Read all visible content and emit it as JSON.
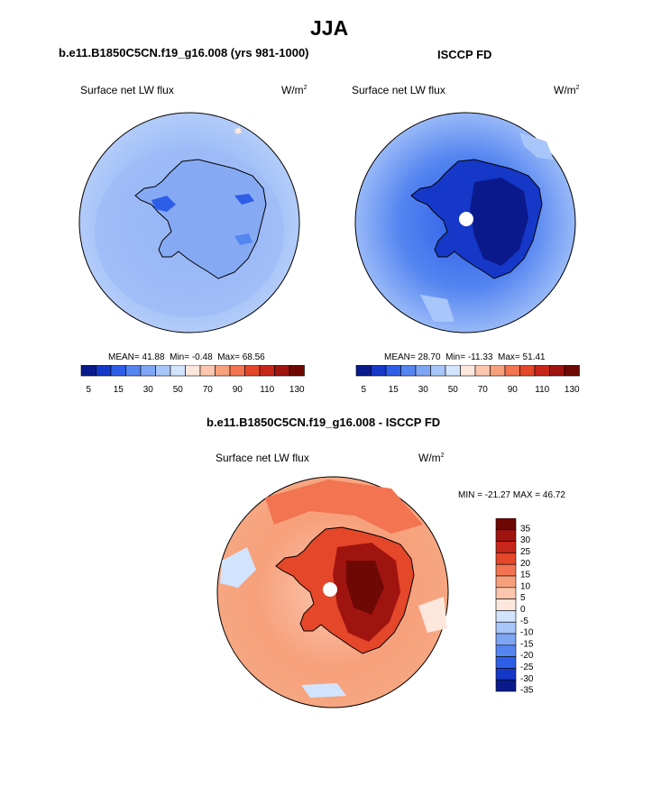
{
  "page": {
    "title": "JJA"
  },
  "chart_data": [
    {
      "type": "heatmap",
      "projection": "south-polar-stereographic",
      "title": "b.e11.B1850C5CN.f19_g16.008 (yrs 981-1000)",
      "variable": "Surface net LW flux",
      "units": "W/m",
      "units_exp": "2",
      "stats": {
        "mean_label": "MEAN=",
        "mean": "41.88",
        "min_label": "Min=",
        "min": "-0.48",
        "max_label": "Max=",
        "max": "68.56"
      },
      "colorbar_ticks": [
        "5",
        "15",
        "30",
        "50",
        "70",
        "90",
        "110",
        "130"
      ],
      "colorbar_levels": [
        5,
        10,
        15,
        20,
        30,
        40,
        50,
        60,
        70,
        80,
        90,
        100,
        110,
        120,
        130
      ]
    },
    {
      "type": "heatmap",
      "projection": "south-polar-stereographic",
      "title": "ISCCP FD",
      "variable": "Surface net LW flux",
      "units": "W/m",
      "units_exp": "2",
      "stats": {
        "mean_label": "MEAN=",
        "mean": "28.70",
        "min_label": "Min=",
        "min": "-11.33",
        "max_label": "Max=",
        "max": "51.41"
      },
      "colorbar_ticks": [
        "5",
        "15",
        "30",
        "50",
        "70",
        "90",
        "110",
        "130"
      ],
      "colorbar_levels": [
        5,
        10,
        15,
        20,
        30,
        40,
        50,
        60,
        70,
        80,
        90,
        100,
        110,
        120,
        130
      ]
    },
    {
      "type": "heatmap",
      "projection": "south-polar-stereographic",
      "title": "b.e11.B1850C5CN.f19_g16.008 - ISCCP FD",
      "variable": "Surface net LW flux",
      "units": "W/m",
      "units_exp": "2",
      "minmax_label": "MIN = -21.27  MAX =  46.72",
      "colorbar_ticks": [
        "35",
        "30",
        "25",
        "20",
        "15",
        "10",
        "5",
        "0",
        "-5",
        "-10",
        "-15",
        "-20",
        "-25",
        "-30",
        "-35"
      ]
    }
  ],
  "colors": {
    "abs_scale": [
      "#0a1a8c",
      "#1638c8",
      "#2e5ee8",
      "#5585f0",
      "#7fa6f5",
      "#a9c6fa",
      "#d2e4fd",
      "#fde7dc",
      "#fbc6ad",
      "#f7a07c",
      "#f27450",
      "#e4472a",
      "#c8261a",
      "#a01410",
      "#6e0805"
    ],
    "diff_scale": [
      "#6e0805",
      "#a01410",
      "#c8261a",
      "#e4472a",
      "#f27450",
      "#f7a07c",
      "#fbc6ad",
      "#fde7dc",
      "#d2e4fd",
      "#a9c6fa",
      "#7fa6f5",
      "#5585f0",
      "#2e5ee8",
      "#1638c8",
      "#0a1a8c"
    ],
    "ocean_model": "#a8c4f5",
    "ocean_obs": "#8fb0f2",
    "ocean_diff": "#f6a882"
  }
}
